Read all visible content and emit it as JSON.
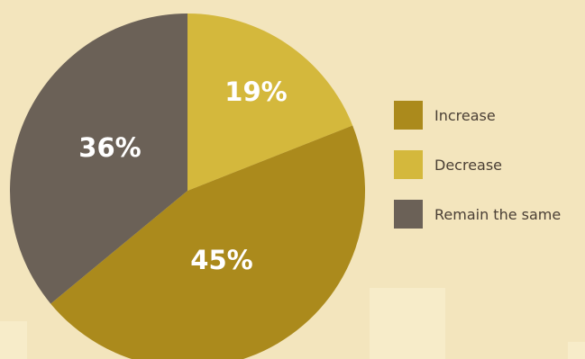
{
  "chart_data": {
    "type": "pie",
    "title": "",
    "categories": [
      "Increase",
      "Decrease",
      "Remain the same"
    ],
    "values": [
      45,
      19,
      36
    ],
    "labels": [
      "45%",
      "19%",
      "36%"
    ],
    "colors": [
      "#ab8a1c",
      "#d4b83c",
      "#6b6157"
    ],
    "legend": "right"
  },
  "colors": {
    "background": "#f3e5bd",
    "label_text": "#ffffff",
    "legend_text": "#4a3f35"
  }
}
